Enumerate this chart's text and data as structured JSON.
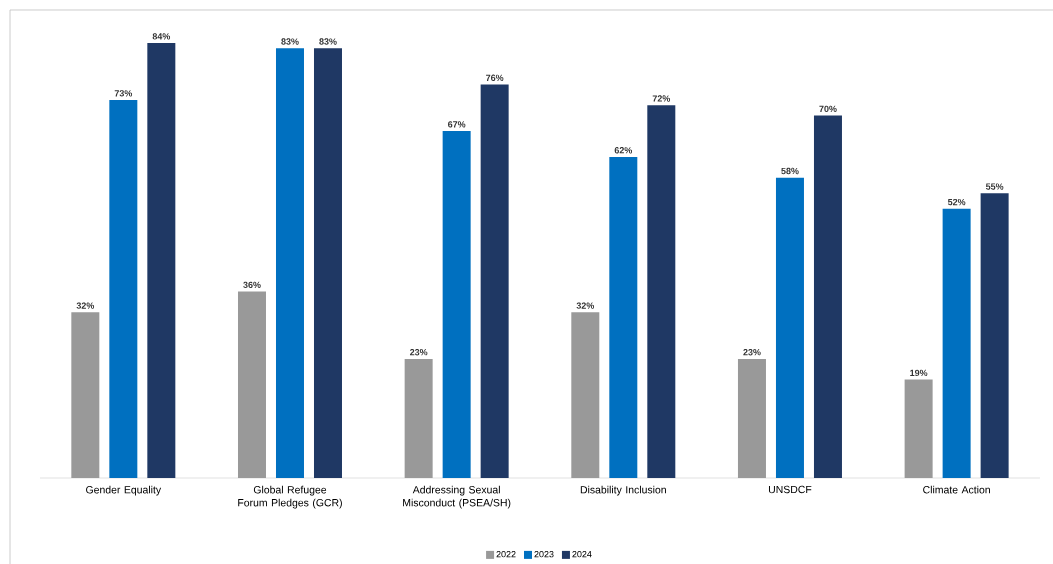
{
  "chart_data": {
    "type": "bar",
    "categories": [
      "Gender Equality",
      "Global Refugee Forum Pledges (GCR)",
      "Addressing Sexual Misconduct (PSEA/SH)",
      "Disability Inclusion",
      "UNSDCF",
      "Climate Action"
    ],
    "series": [
      {
        "name": "2022",
        "color": "#999999",
        "values": [
          32,
          36,
          23,
          32,
          23,
          19
        ],
        "value_labels": [
          "32%",
          "36%",
          "23%",
          "32%",
          "23%",
          "19%"
        ]
      },
      {
        "name": "2023",
        "color": "#0070c0",
        "values": [
          73,
          83,
          67,
          62,
          58,
          52
        ],
        "value_labels": [
          "73%",
          "83%",
          "67%",
          "62%",
          "58%",
          "52%"
        ]
      },
      {
        "name": "2024",
        "color": "#1f3864",
        "values": [
          84,
          83,
          76,
          72,
          70,
          55
        ],
        "value_labels": [
          "84%",
          "83%",
          "76%",
          "72%",
          "70%",
          "55%"
        ]
      }
    ],
    "ylim": [
      0,
      90
    ],
    "legend": "bottom",
    "tick_labels": "x"
  }
}
